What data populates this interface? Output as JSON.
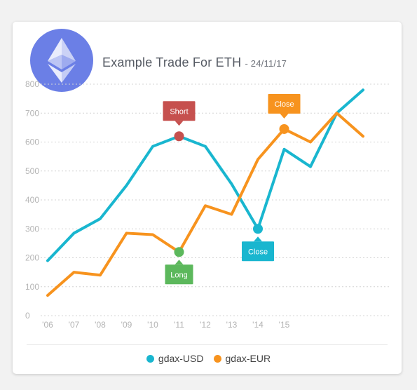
{
  "header": {
    "title": "Example Trade For ETH",
    "date": "- 24/11/17",
    "logo_icon": "ethereum-icon"
  },
  "chart_data": {
    "type": "line",
    "title": "Example Trade For ETH",
    "subtitle": "- 24/11/17",
    "x": [
      "'06",
      "'07",
      "'08",
      "'09",
      "'10",
      "'11",
      "'12",
      "'13",
      "'14",
      "'15",
      "",
      "",
      ""
    ],
    "x_tick_labels": [
      "'06",
      "'07",
      "'08",
      "'09",
      "'10",
      "'11",
      "'12",
      "'13",
      "'14",
      "'15"
    ],
    "ylim": [
      0,
      800
    ],
    "y_ticks": [
      0,
      100,
      200,
      300,
      400,
      500,
      600,
      700,
      800
    ],
    "grid": true,
    "legend_position": "bottom",
    "series": [
      {
        "name": "gdax-USD",
        "color": "#19b6cf",
        "values": [
          190,
          285,
          335,
          450,
          585,
          620,
          585,
          455,
          300,
          575,
          515,
          700,
          780
        ]
      },
      {
        "name": "gdax-EUR",
        "color": "#f7931e",
        "values": [
          70,
          150,
          140,
          285,
          280,
          220,
          380,
          350,
          540,
          645,
          600,
          700,
          620
        ]
      }
    ],
    "annotations": [
      {
        "label": "Short",
        "series": 0,
        "index": 5,
        "color": "#c6504e",
        "position": "above"
      },
      {
        "label": "Long",
        "series": 1,
        "index": 5,
        "color": "#5cb85c",
        "position": "below"
      },
      {
        "label": "Close",
        "series": 0,
        "index": 8,
        "color": "#19b6cf",
        "position": "below"
      },
      {
        "label": "Close",
        "series": 1,
        "index": 9,
        "color": "#f7931e",
        "position": "above"
      }
    ]
  }
}
